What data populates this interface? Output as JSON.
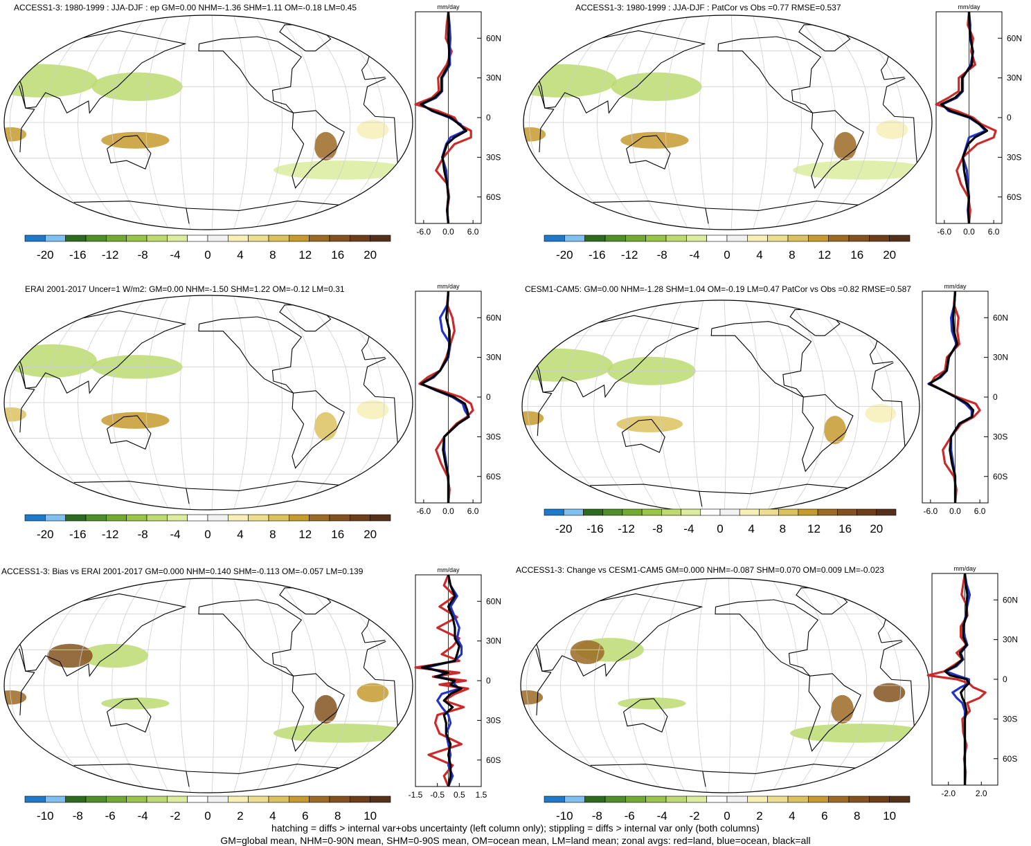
{
  "colors": {
    "palette": [
      "#1f78c8",
      "#80c0f0",
      "#2d6b1f",
      "#4f8f2a",
      "#73aa33",
      "#98c449",
      "#bcda71",
      "#dcec9e",
      "#ffffff",
      "#f2f2f2",
      "#f7efb6",
      "#ecde8e",
      "#dcc25f",
      "#c69a2e",
      "#9c6a25",
      "#845220",
      "#6e3e18",
      "#55301a"
    ],
    "land": "#cc2a2a",
    "ocean": "#2233cc",
    "all": "#000000"
  },
  "chart_data": [
    {
      "type": "heatmap",
      "title": "ACCESS1-3: 1980-1999 : JJA-DJF : ep GM=0.00 NHM=-1.36 SHM=1.11 OM=-0.18 LM=0.45",
      "colorbar_ticks": [
        "-20",
        "-16",
        "-12",
        "-8",
        "-4",
        "0",
        "4",
        "8",
        "12",
        "16",
        "20"
      ],
      "zonal": {
        "unit": "mm/day",
        "xticks": [
          "-6.0",
          "0.0",
          "6.0"
        ],
        "xlim": [
          -8,
          8
        ],
        "yticks": [
          "60N",
          "30N",
          "0",
          "30S",
          "60S"
        ],
        "ylim": [
          -80,
          80
        ],
        "lat": [
          80,
          70,
          60,
          50,
          40,
          30,
          20,
          15,
          10,
          5,
          0,
          -5,
          -10,
          -15,
          -20,
          -30,
          -40,
          -50,
          -60,
          -70,
          -80
        ],
        "land": [
          0,
          -0.4,
          -0.6,
          0.8,
          -0.4,
          -2.5,
          -2.3,
          -4,
          -8,
          -2.5,
          1.5,
          2.5,
          5.5,
          5.5,
          1.5,
          -1.2,
          -3,
          -0.3,
          0.2,
          -0.3,
          0
        ],
        "ocean": [
          0,
          0.3,
          0.5,
          0.3,
          0.4,
          -1.5,
          -1.5,
          -3,
          -6.5,
          -4,
          0.2,
          3,
          4,
          0.5,
          -0.5,
          -1.5,
          -0.5,
          -0.3,
          0,
          -0.3,
          0
        ],
        "all": [
          0,
          0.1,
          0,
          0.2,
          0.1,
          -1.7,
          -1.7,
          -3.4,
          -6.7,
          -3.8,
          0.6,
          2.6,
          4.4,
          1.5,
          -0.3,
          -1.4,
          -1,
          -0.3,
          0,
          -0.3,
          0
        ]
      }
    },
    {
      "type": "heatmap",
      "title": "ACCESS1-3: 1980-1999 : JJA-DJF : PatCor vs Obs =0.77 RMSE=0.537",
      "colorbar_ticks": [
        "-20",
        "-16",
        "-12",
        "-8",
        "-4",
        "0",
        "4",
        "8",
        "12",
        "16",
        "20"
      ],
      "zonal": {
        "unit": "mm/day",
        "xticks": [
          "-6.0",
          "0.0",
          "6.0"
        ],
        "xlim": [
          -8,
          8
        ],
        "yticks": [
          "60N",
          "30N",
          "0",
          "30S",
          "60S"
        ],
        "ylim": [
          -80,
          80
        ],
        "lat": [
          80,
          70,
          60,
          50,
          40,
          30,
          20,
          15,
          10,
          5,
          0,
          -5,
          -10,
          -15,
          -20,
          -30,
          -40,
          -50,
          -60,
          -70,
          -80
        ],
        "land": [
          0,
          -0.3,
          1,
          0.5,
          1.5,
          -2.5,
          -2.5,
          -5,
          -8,
          -3,
          1,
          3,
          6.5,
          6,
          2,
          -1.5,
          -3,
          -2,
          -0.2,
          0.3,
          0
        ],
        "ocean": [
          0,
          0.3,
          0.2,
          1,
          0.4,
          -1.5,
          -1.5,
          -3,
          -6.5,
          -5,
          0,
          2.5,
          4,
          0,
          -0.5,
          -1.5,
          -0.5,
          -0.3,
          0,
          -0.3,
          0
        ],
        "all": [
          0,
          0.1,
          0.4,
          0.9,
          0.7,
          -1.7,
          -1.7,
          -3.4,
          -6.8,
          -4.5,
          0.3,
          2.6,
          4.4,
          1.4,
          -0.2,
          -1.5,
          -1.2,
          -0.6,
          0,
          -0.2,
          0
        ]
      }
    },
    {
      "type": "heatmap",
      "title": "ERAI 2001-2017 Uncer=1 W/m2: GM=0.00 NHM=-1.50 SHM=1.22 OM=-0.12 LM=0.31",
      "colorbar_ticks": [
        "-20",
        "-16",
        "-12",
        "-8",
        "-4",
        "0",
        "4",
        "8",
        "12",
        "16",
        "20"
      ],
      "zonal": {
        "unit": "mm/day",
        "xticks": [
          "-6.0",
          "0.0",
          "6.0"
        ],
        "xlim": [
          -8,
          8
        ],
        "yticks": [
          "60N",
          "30N",
          "0",
          "30S",
          "60S"
        ],
        "ylim": [
          -80,
          80
        ],
        "lat": [
          80,
          70,
          60,
          50,
          40,
          30,
          20,
          15,
          10,
          5,
          0,
          -5,
          -10,
          -15,
          -20,
          -30,
          -40,
          -50,
          -60,
          -70,
          -80
        ],
        "land": [
          0,
          -0.3,
          1,
          1.5,
          0.5,
          -0.5,
          -2,
          -5,
          -7,
          -2,
          3,
          5.5,
          6,
          4.5,
          2,
          -1,
          -3,
          -1.8,
          -0.2,
          0.3,
          0
        ],
        "ocean": [
          0,
          -0.2,
          -2,
          -1.5,
          0.5,
          0,
          -2,
          -3.5,
          -6.5,
          -3,
          1,
          3.5,
          4,
          5,
          2.5,
          -1,
          -1,
          -0.5,
          0,
          0,
          0
        ],
        "all": [
          0,
          -0.2,
          -0.5,
          0.3,
          0.3,
          -0.2,
          -2,
          -3.8,
          -6.6,
          -2.8,
          1.4,
          4,
          4.6,
          4.9,
          2.4,
          -1,
          -1.3,
          -0.7,
          0,
          0,
          0
        ]
      }
    },
    {
      "type": "heatmap",
      "title": "CESM1-CAM5: GM=0.00 NHM=-1.28 SHM=1.04 OM=-0.19 LM=0.47 PatCor vs Obs =0.82 RMSE=0.587",
      "colorbar_ticks": [
        "-20",
        "-16",
        "-12",
        "-8",
        "-4",
        "0",
        "4",
        "8",
        "12",
        "16",
        "20"
      ],
      "zonal": {
        "unit": "mm/day",
        "xticks": [
          "-6.0",
          "0.0",
          "6.0"
        ],
        "xlim": [
          -8,
          8
        ],
        "yticks": [
          "60N",
          "30N",
          "0",
          "30S",
          "60S"
        ],
        "ylim": [
          -80,
          80
        ],
        "lat": [
          80,
          70,
          60,
          50,
          40,
          30,
          20,
          15,
          10,
          5,
          0,
          -5,
          -10,
          -15,
          -20,
          -30,
          -40,
          -50,
          -60,
          -70,
          -80
        ],
        "land": [
          0,
          -0.3,
          0.8,
          0.5,
          1,
          -2,
          -2.5,
          -5,
          -6,
          -3,
          0.5,
          5,
          6,
          4.5,
          1.5,
          -1,
          -3,
          -2.5,
          -0.3,
          0.3,
          0
        ],
        "ocean": [
          0,
          -0.2,
          -1,
          -0.8,
          0.3,
          -1.5,
          -2,
          -3.5,
          -6.5,
          -3,
          0,
          2.5,
          4,
          4,
          1,
          -1,
          -1,
          -0.5,
          0,
          0,
          0
        ],
        "all": [
          0,
          -0.2,
          -0.5,
          -0.3,
          0.5,
          -1.6,
          -2.1,
          -3.8,
          -6.3,
          -3,
          0.1,
          3,
          4.4,
          4.1,
          1.1,
          -1,
          -1.3,
          -0.8,
          0,
          0,
          0
        ]
      }
    },
    {
      "type": "heatmap",
      "title": "ACCESS1-3: Bias vs ERAI 2001-2017 GM=0.000 NHM=0.140 SHM=-0.113 OM=-0.057 LM=0.139",
      "colorbar_ticks": [
        "-10",
        "-8",
        "-6",
        "-4",
        "-2",
        "0",
        "2",
        "4",
        "6",
        "8",
        "10"
      ],
      "zonal": {
        "unit": "mm/day",
        "xticks": [
          "-1.5",
          "-0.5",
          "0.5",
          "1.5"
        ],
        "xlim": [
          -1.5,
          1.5
        ],
        "yticks": [
          "60N",
          "30N",
          "0",
          "30S",
          "60S"
        ],
        "ylim": [
          -80,
          80
        ],
        "lat": [
          80,
          72,
          64,
          56,
          48,
          40,
          32,
          26,
          20,
          15,
          10,
          6,
          3,
          0,
          -3,
          -6,
          -10,
          -15,
          -20,
          -26,
          -32,
          -40,
          -48,
          -56,
          -64,
          -72,
          -80
        ],
        "land": [
          0,
          -0.2,
          0.3,
          -0.4,
          0.4,
          -0.5,
          0.5,
          0.2,
          -0.3,
          0.5,
          -1.5,
          0.5,
          -0.7,
          0.8,
          -0.4,
          0.9,
          0.3,
          -0.2,
          0.7,
          -0.5,
          -0.6,
          -0.4,
          0.6,
          -0.9,
          0.2,
          -0.2,
          0
        ],
        "ocean": [
          0,
          0.1,
          0.4,
          0.1,
          0.3,
          0.5,
          0.4,
          0.6,
          0.6,
          0.3,
          -1,
          -0.2,
          -0.4,
          0.2,
          0.3,
          0.5,
          -0.3,
          -0.5,
          -0.3,
          0,
          0.1,
          -0.1,
          0,
          0.1,
          0,
          0.2,
          0
        ],
        "all": [
          0,
          0.1,
          0.3,
          0,
          0.2,
          0.3,
          0.3,
          0.5,
          0.4,
          0.3,
          -1.2,
          0,
          -0.6,
          0.3,
          0.1,
          0.6,
          0.1,
          -0.2,
          0.2,
          -0.2,
          -0.1,
          -0.1,
          0.1,
          0,
          0.1,
          0.1,
          0
        ]
      }
    },
    {
      "type": "heatmap",
      "title": "ACCESS1-3: Change vs CESM1-CAM5 GM=0.000 NHM=-0.087 SHM=0.070 OM=0.009 LM=-0.023",
      "colorbar_ticks": [
        "-10",
        "-8",
        "-6",
        "-4",
        "-2",
        "0",
        "2",
        "4",
        "6",
        "8",
        "10"
      ],
      "zonal": {
        "unit": "mm/day",
        "xticks": [
          "-2.0",
          "2.0"
        ],
        "xlim": [
          -4,
          4
        ],
        "yticks": [
          "60N",
          "30N",
          "0",
          "30S",
          "60S"
        ],
        "ylim": [
          -80,
          80
        ],
        "lat": [
          80,
          72,
          64,
          56,
          48,
          40,
          32,
          26,
          20,
          15,
          10,
          6,
          3,
          0,
          -3,
          -6,
          -10,
          -14,
          -18,
          -24,
          -30,
          -40,
          -50,
          -60,
          -70,
          -80
        ],
        "land": [
          0,
          -0.2,
          -0.4,
          0.2,
          0.3,
          -0.5,
          -0.5,
          0.2,
          -1,
          -0.3,
          -1.5,
          -2.5,
          -4.5,
          -1,
          0.5,
          1,
          2.5,
          1.8,
          0.3,
          0.6,
          -0.3,
          -0.2,
          0.2,
          -0.1,
          0.1,
          0
        ],
        "ocean": [
          0,
          0.2,
          0.6,
          0.3,
          0.1,
          -0.2,
          0,
          0.3,
          -0.5,
          -0.2,
          -1,
          -2.3,
          -1,
          0.5,
          0.5,
          -0.5,
          -1.5,
          -1,
          -0.3,
          0,
          0,
          0,
          0,
          0,
          0,
          0
        ],
        "all": [
          0,
          0.1,
          0.3,
          0.2,
          0.2,
          -0.2,
          -0.2,
          0.2,
          -0.6,
          -0.3,
          -1.2,
          -2.4,
          -1.8,
          0.2,
          0.5,
          0,
          -0.5,
          -0.3,
          0,
          0.2,
          0,
          0,
          0,
          0,
          0,
          0
        ]
      }
    }
  ],
  "footnote": {
    "line1": "hatching = diffs > internal var+obs uncertainty (left column only); stippling = diffs > internal var only (both columns)",
    "line2": "GM=global mean, NHM=0-90N mean, SHM=0-90S mean, OM=ocean mean, LM=land mean; zonal avgs: red=land, blue=ocean, black=all"
  }
}
